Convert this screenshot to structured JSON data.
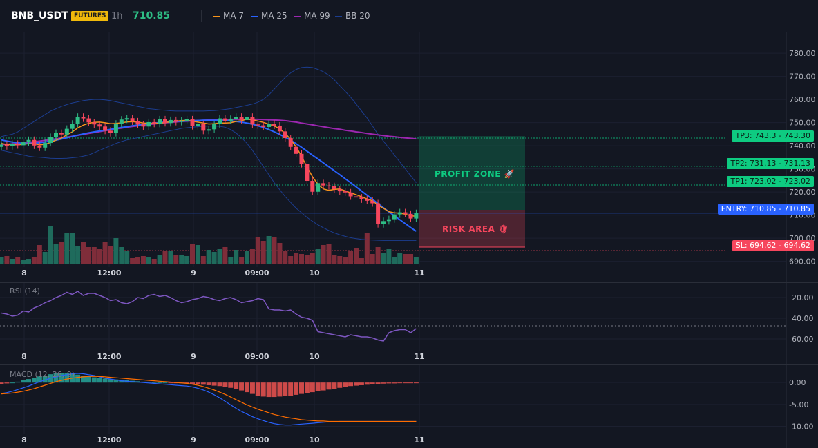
{
  "header": {
    "symbol": "BNB_USDT",
    "badge": "FUTURES",
    "timeframe": "1h",
    "price": "710.85",
    "legend": [
      {
        "label": "MA 7",
        "color": "#f7931a"
      },
      {
        "label": "MA 25",
        "color": "#2962ff"
      },
      {
        "label": "MA 99",
        "color": "#9c27b0"
      },
      {
        "label": "BB 20",
        "color": "#1c3d8f"
      }
    ]
  },
  "main_chart": {
    "price_ticks": [
      "780.00",
      "770.00",
      "760.00",
      "750.00",
      "740.00",
      "730.00",
      "720.00",
      "710.00",
      "700.00",
      "690.00"
    ],
    "x_ticks": [
      "8",
      "12:00",
      "9",
      "09:00",
      "10",
      "11"
    ]
  },
  "levels": {
    "tp3": {
      "label": "TP3: 743.3",
      "value": "743.30"
    },
    "tp2": {
      "label": "TP2: 731.13",
      "value": "731.13"
    },
    "tp1": {
      "label": "TP1: 723.02",
      "value": "723.02"
    },
    "entry": {
      "label": "ENTRY: 710.85",
      "value": "710.85"
    },
    "sl": {
      "label": "SL: 694.62",
      "value": "694.62"
    }
  },
  "zones": {
    "profit": "PROFIT ZONE 🚀",
    "risk": "RISK AREA 🛡"
  },
  "rsi": {
    "title": "RSI (14)",
    "ticks": [
      "60.00",
      "40.00",
      "20.00"
    ]
  },
  "macd": {
    "title": "MACD (12, 26, 9)",
    "ticks": [
      "0.00",
      "-5.00",
      "-10.00"
    ]
  },
  "colors": {
    "background": "#131722",
    "up": "#2ebd85",
    "down": "#f6465d",
    "tp_green": "#0ecb81",
    "entry_blue": "#2962ff",
    "sl_pink": "#f6465d"
  },
  "chart_data": [
    {
      "type": "candlestick",
      "title": "BNB_USDT 1h",
      "ylim": [
        686,
        786
      ],
      "y_ticks": [
        690,
        700,
        710,
        720,
        730,
        740,
        750,
        760,
        770,
        780
      ],
      "x_ticks": [
        "8",
        "12:00",
        "9",
        "09:00",
        "10",
        "11"
      ],
      "close": [
        740.5,
        739.8,
        740.8,
        740.2,
        741.5,
        742.5,
        740.1,
        739.2,
        741.2,
        743.8,
        745.5,
        744.9,
        747.3,
        749.5,
        752.5,
        751.8,
        750.1,
        749.2,
        748.3,
        746.5,
        745.5,
        749.5,
        751.3,
        751.9,
        750.5,
        749.2,
        748.3,
        750.2,
        749.5,
        751.4,
        749.8,
        751.1,
        750.3,
        750.8,
        751.4,
        748.5,
        749.3,
        746.5,
        747.1,
        749.3,
        751.8,
        750.8,
        751.6,
        752.5,
        751.1,
        752.5,
        749.2,
        748.8,
        748.1,
        749.5,
        748.7,
        746.2,
        743.3,
        739.5,
        736.5,
        732.1,
        724.8,
        720.1,
        723.8,
        722.8,
        722.5,
        721.2,
        720.3,
        719.8,
        718.1,
        717.6,
        716.8,
        716.2,
        715.1,
        706.1,
        707.4,
        708.2,
        710.3,
        711.2,
        710.5,
        708.5,
        710.85
      ],
      "ma7": [
        741,
        740.5,
        740.4,
        740.4,
        740.6,
        740.9,
        740.8,
        740.4,
        740.6,
        741.4,
        742.4,
        743.3,
        744.7,
        746,
        747.7,
        748.9,
        749.7,
        750.1,
        750.2,
        749.9,
        749.5,
        749.6,
        749.9,
        750.3,
        750.4,
        750.2,
        749.8,
        749.6,
        749.6,
        749.8,
        750,
        750.4,
        750.6,
        750.9,
        750.9,
        750.6,
        750.2,
        749.8,
        749.4,
        749.5,
        749.8,
        749.8,
        749.9,
        750.5,
        750.8,
        751.5,
        751.2,
        750.7,
        750.1,
        749.3,
        748.5,
        747.3,
        745.3,
        742.8,
        739.5,
        735.4,
        730.8,
        726.6,
        723.3,
        721.3,
        720.7,
        721.1,
        721.3,
        720.5,
        719.6,
        718.8,
        717.9,
        717,
        716.2,
        714.3,
        712.9,
        711.5,
        711,
        710.8,
        710.4,
        709.7,
        709.5
      ],
      "ma25": [
        742.5,
        742,
        741.6,
        741.3,
        741,
        741,
        741.1,
        741.3,
        741.6,
        742,
        742.4,
        742.9,
        743.4,
        744,
        744.6,
        745.1,
        745.6,
        746,
        746.4,
        746.7,
        747.1,
        747.5,
        747.9,
        748.2,
        748.6,
        748.9,
        749.2,
        749.5,
        749.8,
        750,
        750.2,
        750.4,
        750.5,
        750.6,
        750.7,
        750.8,
        750.9,
        751,
        751,
        751,
        751,
        750.9,
        750.7,
        750.5,
        750.2,
        749.8,
        749.3,
        748.6,
        747.9,
        747,
        746,
        744.9,
        743.7,
        742.4,
        740.9,
        739.3,
        737.6,
        735.9,
        734.3,
        732.6,
        730.9,
        729.2,
        727.5,
        725.7,
        724,
        722.2,
        720.4,
        718.6,
        716.8,
        715,
        713.2,
        711.4,
        709.7,
        708,
        706.3,
        704.6,
        703
      ],
      "ma99": [
        740.5,
        740.6,
        740.8,
        741,
        741.2,
        741.5,
        741.7,
        742,
        742.3,
        742.6,
        743,
        743.3,
        743.7,
        744.1,
        744.5,
        744.9,
        745.3,
        745.7,
        746.1,
        746.5,
        746.9,
        747.3,
        747.6,
        748,
        748.3,
        748.6,
        748.9,
        749.2,
        749.4,
        749.7,
        749.9,
        750.1,
        750.3,
        750.5,
        750.6,
        750.8,
        750.9,
        751,
        751.1,
        751.2,
        751.3,
        751.3,
        751.4,
        751.4,
        751.4,
        751.4,
        751.4,
        751.4,
        751.3,
        751.2,
        751.1,
        751,
        750.8,
        750.5,
        750.2,
        749.8,
        749.4,
        749,
        748.6,
        748.2,
        747.8,
        747.4,
        747.1,
        746.7,
        746.4,
        746,
        745.7,
        745.3,
        745,
        744.7,
        744.4,
        744.1,
        743.9,
        743.6,
        743.4,
        743.2,
        743
      ],
      "volume": [
        9,
        11,
        7,
        9,
        6,
        7,
        9,
        27,
        17,
        54,
        28,
        32,
        44,
        45,
        25,
        31,
        24,
        24,
        22,
        32,
        25,
        37,
        24,
        19,
        8,
        9,
        11,
        9,
        7,
        13,
        18,
        19,
        12,
        13,
        11,
        28,
        27,
        11,
        20,
        17,
        22,
        24,
        10,
        20,
        9,
        18,
        22,
        38,
        33,
        40,
        38,
        30,
        19,
        11,
        15,
        14,
        13,
        15,
        21,
        27,
        28,
        13,
        11,
        10,
        19,
        23,
        8,
        44,
        14,
        24,
        16,
        22,
        10,
        15,
        14,
        14,
        10
      ],
      "bollinger_upper": [
        744,
        744.5,
        745,
        746,
        747.5,
        749,
        750.5,
        752,
        753.5,
        755,
        756,
        757,
        757.8,
        758.5,
        759,
        759.5,
        759.8,
        760,
        760,
        759.8,
        759.5,
        759,
        758.5,
        758,
        757.5,
        757,
        756.5,
        756,
        755.8,
        755.5,
        755.3,
        755.1,
        755,
        755,
        755,
        755,
        755,
        755,
        755.1,
        755.2,
        755.4,
        755.7,
        756,
        756.5,
        757,
        757.5,
        758,
        758.8,
        760,
        762,
        764.5,
        767,
        769.5,
        771.5,
        773,
        773.8,
        774,
        773.8,
        773,
        772,
        770.5,
        768.5,
        766,
        763.5,
        761,
        758,
        755,
        752,
        748.5,
        745,
        742,
        739,
        736,
        733,
        730,
        727,
        724
      ],
      "bollinger_lower": [
        738,
        737.5,
        737,
        736.5,
        736,
        735.5,
        735.2,
        735,
        734.8,
        734.6,
        734.5,
        734.5,
        734.6,
        734.8,
        735,
        735.5,
        736,
        737,
        738,
        739,
        740,
        741,
        741.8,
        742.5,
        743,
        743.5,
        744,
        744.5,
        745,
        745.5,
        746,
        746.5,
        747,
        747.5,
        747.8,
        748,
        748.2,
        748.4,
        748.5,
        748.5,
        748.4,
        748,
        747,
        745.5,
        743.5,
        741,
        738,
        734.5,
        731,
        727.5,
        724,
        721,
        718,
        715.5,
        713,
        711,
        709,
        707.3,
        705.8,
        704.5,
        703.3,
        702.3,
        701.5,
        700.8,
        700.2,
        699.8,
        699.5,
        699.3,
        699.2,
        699.1,
        699,
        699,
        699,
        699,
        699,
        699,
        699
      ]
    },
    {
      "type": "line",
      "title": "RSI (14)",
      "ylim": [
        10,
        70
      ],
      "y_ticks": [
        20,
        40,
        60
      ],
      "series": [
        {
          "name": "RSI (14)",
          "values": [
            45,
            44,
            42,
            43,
            47,
            46,
            50,
            52,
            55,
            57,
            60,
            62,
            65,
            63,
            66,
            62,
            64,
            64,
            62,
            60,
            57,
            58,
            55,
            54,
            56,
            60,
            59,
            62,
            63,
            61,
            62,
            60,
            57,
            55,
            56,
            58,
            59,
            61,
            60,
            58,
            57,
            59,
            60,
            58,
            55,
            56,
            57,
            59,
            58,
            49,
            48,
            48,
            47,
            48,
            44,
            41,
            40,
            38,
            27,
            26,
            25,
            24,
            23,
            22,
            24,
            23,
            22,
            22,
            21,
            19,
            18,
            26,
            28,
            29,
            29,
            26,
            30
          ]
        }
      ]
    },
    {
      "type": "bar",
      "title": "MACD (12, 26, 9)",
      "ylim": [
        -11.5,
        3.5
      ],
      "y_ticks": [
        0,
        -5,
        -10
      ],
      "histogram": [
        -0.3,
        -0.2,
        0,
        0.2,
        0.5,
        0.8,
        1.1,
        1.4,
        1.6,
        1.9,
        2.1,
        2.2,
        2.2,
        2,
        1.8,
        1.6,
        1.4,
        1.2,
        1,
        0.9,
        0.8,
        0.7,
        0.6,
        0.5,
        0.4,
        0.3,
        0.2,
        0.15,
        0.1,
        0.05,
        0,
        -0.05,
        -0.1,
        -0.15,
        -0.2,
        -0.3,
        -0.4,
        -0.5,
        -0.6,
        -0.7,
        -0.8,
        -1,
        -1.2,
        -1.5,
        -1.8,
        -2.2,
        -2.6,
        -3,
        -3.2,
        -3.3,
        -3.3,
        -3.2,
        -3.1,
        -3,
        -2.8,
        -2.6,
        -2.4,
        -2.2,
        -2,
        -1.8,
        -1.6,
        -1.4,
        -1.2,
        -1,
        -0.8,
        -0.7,
        -0.6,
        -0.5,
        -0.4,
        -0.3,
        -0.25,
        -0.2,
        -0.2,
        -0.15,
        -0.1,
        -0.1,
        -0.1
      ],
      "macd": [
        -2.5,
        -2.3,
        -2,
        -1.6,
        -1.2,
        -0.8,
        -0.3,
        0.2,
        0.6,
        1,
        1.3,
        1.6,
        1.8,
        2,
        2.1,
        2,
        1.8,
        1.6,
        1.3,
        1,
        0.8,
        0.6,
        0.4,
        0.3,
        0.2,
        0.1,
        0,
        -0.1,
        -0.2,
        -0.3,
        -0.4,
        -0.5,
        -0.6,
        -0.7,
        -0.8,
        -1,
        -1.3,
        -1.7,
        -2.2,
        -2.8,
        -3.5,
        -4.3,
        -5.1,
        -5.9,
        -6.6,
        -7.2,
        -7.8,
        -8.3,
        -8.7,
        -9.1,
        -9.4,
        -9.6,
        -9.7,
        -9.7,
        -9.6,
        -9.5,
        -9.4,
        -9.3,
        -9.2,
        -9.1,
        -9,
        -9,
        -8.9,
        -8.9,
        -8.9,
        -8.9,
        -8.9,
        -8.9,
        -8.9,
        -8.9,
        -8.9,
        -8.9,
        -8.9,
        -8.9,
        -8.9,
        -8.9,
        -8.9
      ],
      "signal": [
        -2.6,
        -2.5,
        -2.4,
        -2.2,
        -2,
        -1.7,
        -1.4,
        -1,
        -0.6,
        -0.2,
        0.2,
        0.5,
        0.8,
        1,
        1.2,
        1.3,
        1.4,
        1.4,
        1.4,
        1.3,
        1.2,
        1.1,
        1,
        0.9,
        0.8,
        0.7,
        0.6,
        0.5,
        0.4,
        0.3,
        0.2,
        0.1,
        0,
        -0.1,
        -0.2,
        -0.4,
        -0.6,
        -0.9,
        -1.3,
        -1.7,
        -2.2,
        -2.7,
        -3.3,
        -3.9,
        -4.5,
        -5.1,
        -5.6,
        -6.1,
        -6.5,
        -6.9,
        -7.3,
        -7.6,
        -7.9,
        -8.1,
        -8.3,
        -8.5,
        -8.6,
        -8.7,
        -8.8,
        -8.8,
        -8.9,
        -8.9,
        -8.9,
        -8.9,
        -8.9,
        -8.9,
        -8.9,
        -8.9,
        -8.9,
        -8.9,
        -8.9,
        -8.9,
        -8.9,
        -8.9,
        -8.9,
        -8.9,
        -8.9
      ]
    }
  ]
}
